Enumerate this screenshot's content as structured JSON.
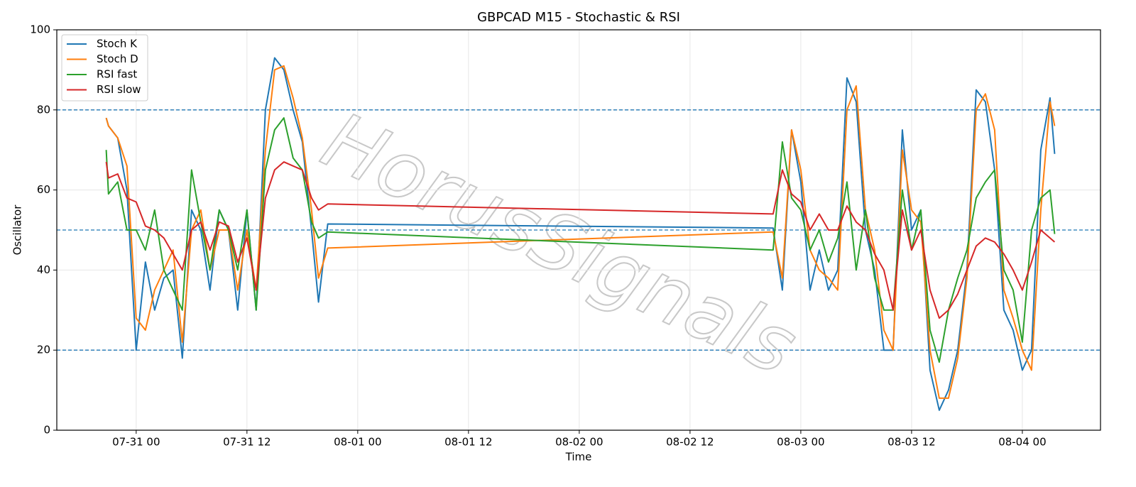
{
  "chart_data": {
    "type": "line",
    "title": "GBPCAD M15 - Stochastic & RSI",
    "x_label": "Time",
    "y_label": "Oscillator",
    "watermark": "HorusSignals",
    "x": [
      "07-30 20:45",
      "07-30 21:00",
      "07-30 22:00",
      "07-30 23:00",
      "07-31 00:00",
      "07-31 01:00",
      "07-31 02:00",
      "07-31 03:00",
      "07-31 04:00",
      "07-31 05:00",
      "07-31 06:00",
      "07-31 07:00",
      "07-31 08:00",
      "07-31 09:00",
      "07-31 10:00",
      "07-31 11:00",
      "07-31 12:00",
      "07-31 13:00",
      "07-31 14:00",
      "07-31 15:00",
      "07-31 16:00",
      "07-31 17:00",
      "07-31 18:00",
      "07-31 19:00",
      "07-31 19:45",
      "07-31 20:45",
      "08-02 21:00",
      "08-02 22:00",
      "08-02 23:00",
      "08-03 00:00",
      "08-03 01:00",
      "08-03 02:00",
      "08-03 03:00",
      "08-03 04:00",
      "08-03 05:00",
      "08-03 06:00",
      "08-03 07:00",
      "08-03 08:00",
      "08-03 09:00",
      "08-03 10:00",
      "08-03 11:00",
      "08-03 12:00",
      "08-03 13:00",
      "08-03 14:00",
      "08-03 15:00",
      "08-03 16:00",
      "08-03 17:00",
      "08-03 18:00",
      "08-03 19:00",
      "08-03 20:00",
      "08-03 21:00",
      "08-03 22:00",
      "08-03 23:00",
      "08-04 00:00",
      "08-04 01:00",
      "08-04 02:00",
      "08-04 03:00",
      "08-04 03:30"
    ],
    "series": [
      {
        "name": "Stoch K",
        "color": "#1f77b4",
        "values": [
          78,
          76,
          73,
          60,
          20,
          42,
          30,
          38,
          40,
          18,
          55,
          50,
          35,
          55,
          50,
          30,
          55,
          30,
          80,
          93,
          90,
          80,
          72,
          50,
          32,
          51.5,
          50.5,
          35,
          75,
          62,
          35,
          45,
          35,
          40,
          88,
          82,
          50,
          40,
          20,
          20,
          75,
          50,
          55,
          15,
          5,
          10,
          20,
          40,
          85,
          82,
          65,
          30,
          25,
          15,
          20,
          70,
          83,
          69
        ]
      },
      {
        "name": "Stoch D",
        "color": "#ff7f0e",
        "values": [
          78,
          76,
          73,
          66,
          28,
          25,
          35,
          40,
          45,
          22,
          50,
          55,
          40,
          50,
          50,
          35,
          50,
          35,
          70,
          90,
          91,
          83,
          73,
          55,
          38,
          45.5,
          49.5,
          38,
          75,
          65,
          45,
          40,
          38,
          35,
          80,
          86,
          55,
          45,
          25,
          20,
          70,
          55,
          52,
          20,
          8,
          8,
          18,
          38,
          80,
          84,
          75,
          35,
          28,
          20,
          15,
          55,
          82,
          76
        ]
      },
      {
        "name": "RSI fast",
        "color": "#2ca02c",
        "values": [
          70,
          59,
          62,
          50,
          50,
          45,
          55,
          40,
          35,
          30,
          65,
          52,
          40,
          55,
          50,
          40,
          55,
          30,
          65,
          75,
          78,
          68,
          65,
          52,
          48,
          49.5,
          45,
          72,
          58,
          55,
          45,
          50,
          42,
          48,
          62,
          40,
          55,
          38,
          30,
          30,
          60,
          45,
          55,
          25,
          17,
          30,
          38,
          45,
          58,
          62,
          65,
          40,
          35,
          22,
          50,
          58,
          60,
          49
        ]
      },
      {
        "name": "RSI slow",
        "color": "#d62728",
        "values": [
          67,
          63,
          64,
          58,
          57,
          51,
          50,
          48,
          44,
          40,
          50,
          52,
          45,
          52,
          51,
          42,
          48,
          35,
          58,
          65,
          67,
          66,
          65,
          58,
          55,
          56.5,
          54,
          65,
          59,
          57,
          50,
          54,
          50,
          50,
          56,
          52,
          50,
          44,
          40,
          30,
          55,
          45,
          50,
          35,
          28,
          30,
          34,
          40,
          46,
          48,
          47,
          44,
          40,
          35,
          42,
          50,
          48,
          47
        ]
      }
    ],
    "xlim": [
      "07-30 15:24",
      "08-04 08:28"
    ],
    "xticks": [
      {
        "value": "07-31 00:00",
        "label": "07-31 00"
      },
      {
        "value": "07-31 12:00",
        "label": "07-31 12"
      },
      {
        "value": "08-01 00:00",
        "label": "08-01 00"
      },
      {
        "value": "08-01 12:00",
        "label": "08-01 12"
      },
      {
        "value": "08-02 00:00",
        "label": "08-02 00"
      },
      {
        "value": "08-02 12:00",
        "label": "08-02 12"
      },
      {
        "value": "08-03 00:00",
        "label": "08-03 00"
      },
      {
        "value": "08-03 12:00",
        "label": "08-03 12"
      },
      {
        "value": "08-04 00:00",
        "label": "08-04 00"
      }
    ],
    "ylim": [
      0,
      100
    ],
    "yticks": [
      0,
      20,
      40,
      60,
      80,
      100
    ],
    "hlines": [
      20,
      50,
      80
    ],
    "hline_color": "#1f77b4",
    "grid": true,
    "legend": "upper-left"
  }
}
